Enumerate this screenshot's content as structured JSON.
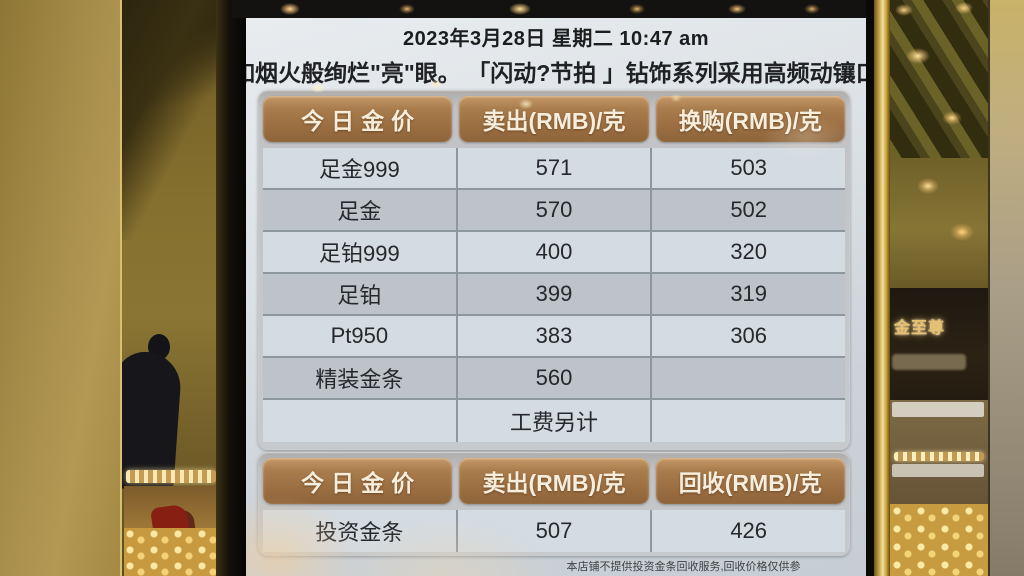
{
  "photo": {
    "store_sign": "金至尊"
  },
  "screen": {
    "date_line": "2023年3月28日 星期二 10:47 am",
    "marquee": "如烟火般绚烂\"亮\"眼。 「闪动?节拍 」钻饰系列采用高频动镶口",
    "footer": "本店铺不提供投资金条回收服务,回收价格仅供参考",
    "price_table": {
      "headers": [
        "今日金价",
        "卖出(RMB)/克",
        "换购(RMB)/克"
      ],
      "rows": [
        [
          "足金999",
          "571",
          "503"
        ],
        [
          "足金",
          "570",
          "502"
        ],
        [
          "足铂999",
          "400",
          "320"
        ],
        [
          "足铂",
          "399",
          "319"
        ],
        [
          "Pt950",
          "383",
          "306"
        ],
        [
          "精装金条",
          "560",
          ""
        ],
        [
          "",
          "工费另计",
          ""
        ]
      ]
    },
    "invest_table": {
      "headers": [
        "今日金价",
        "卖出(RMB)/克",
        "回收(RMB)/克"
      ],
      "rows": [
        [
          "投资金条",
          "507",
          "426"
        ]
      ]
    },
    "colors": {
      "header_bg": "#a2754a",
      "row_light": "#d4dbe1",
      "row_dark": "#bdc3c8",
      "panel_gray": "#c2c2c4",
      "screen_bg": "#dde2e6",
      "gold_wall": "#a88e4b",
      "sign_gold": "#e6c071"
    }
  }
}
